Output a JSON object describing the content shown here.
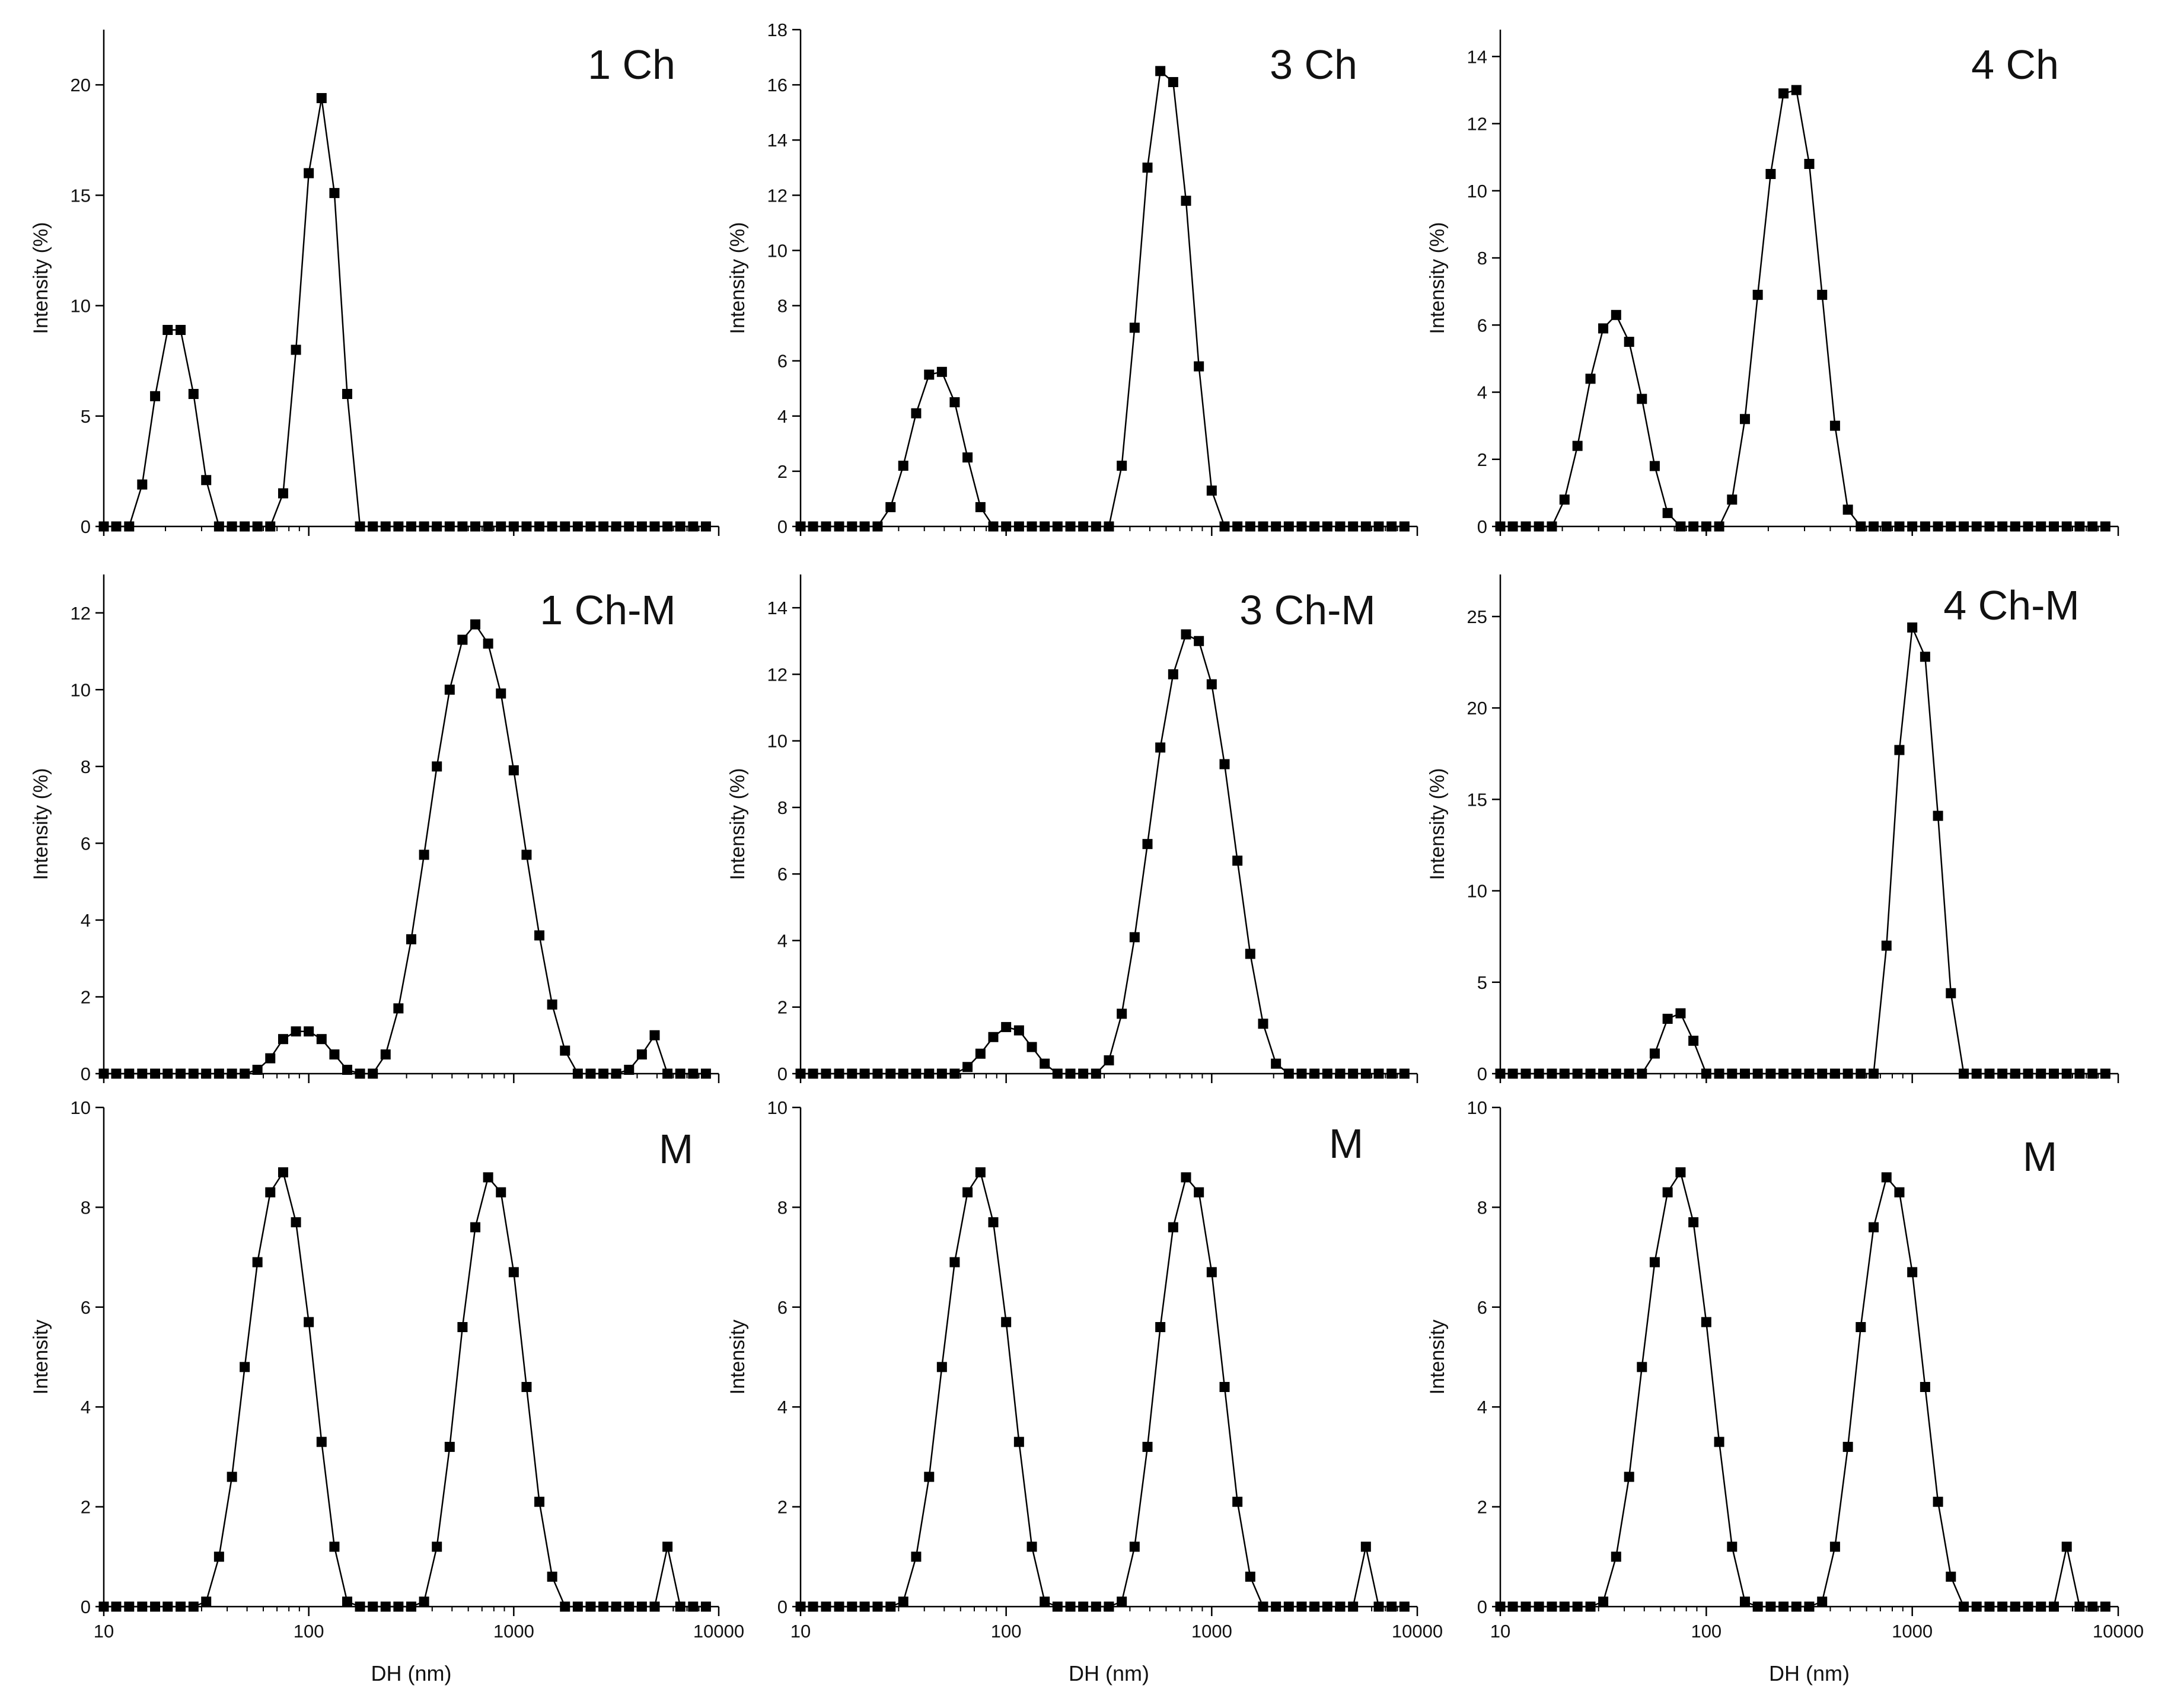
{
  "colors": {
    "line": "#000000",
    "marker": "#000000",
    "axis": "#000000",
    "background": "#ffffff"
  },
  "chart_data": [
    {
      "type": "line",
      "panel": "1 Ch",
      "label": "1 Ch",
      "xscale": "log",
      "xlim": [
        10,
        10000
      ],
      "ylim": [
        0,
        22.5
      ],
      "xlabel": "",
      "ylabel": "Intensity (%)",
      "yticks": [
        0,
        5,
        10,
        15,
        20
      ],
      "xtick_labels": [],
      "grid": false,
      "legend": "none",
      "x": [
        10,
        11.5,
        13.3,
        15.4,
        17.8,
        20.5,
        23.7,
        27.4,
        31.6,
        36.5,
        42.2,
        48.7,
        56.2,
        64.9,
        75,
        86.6,
        100,
        115.5,
        133.4,
        154,
        177.8,
        205.4,
        237.1,
        273.8,
        316.2,
        365.2,
        421.7,
        487,
        562.3,
        649.4,
        749.9,
        866,
        1000,
        1154.8,
        1333.5,
        1539.9,
        1778.3,
        2053.5,
        2371.4,
        2738.4,
        3162.3,
        3651.7,
        4217,
        4869.7,
        5623.4,
        6493.8,
        7498.9,
        8659.6
      ],
      "y": [
        0,
        0,
        0,
        1.9,
        5.9,
        8.9,
        8.9,
        6,
        2.1,
        0,
        0,
        0,
        0,
        0,
        1.5,
        8,
        16,
        19.4,
        15.1,
        6,
        0,
        0,
        0,
        0,
        0,
        0,
        0,
        0,
        0,
        0,
        0,
        0,
        0,
        0,
        0,
        0,
        0,
        0,
        0,
        0,
        0,
        0,
        0,
        0,
        0,
        0,
        0,
        0
      ]
    },
    {
      "type": "line",
      "panel": "3 Ch",
      "label": "3 Ch",
      "xscale": "log",
      "xlim": [
        10,
        10000
      ],
      "ylim": [
        0,
        18
      ],
      "xlabel": "",
      "ylabel": "Intensity (%)",
      "yticks": [
        0,
        2,
        4,
        6,
        8,
        10,
        12,
        14,
        16,
        18
      ],
      "xtick_labels": [],
      "grid": false,
      "legend": "none",
      "x": [
        10,
        11.5,
        13.3,
        15.4,
        17.8,
        20.5,
        23.7,
        27.4,
        31.6,
        36.5,
        42.2,
        48.7,
        56.2,
        64.9,
        75,
        86.6,
        100,
        115.5,
        133.4,
        154,
        177.8,
        205.4,
        237.1,
        273.8,
        316.2,
        365.2,
        421.7,
        487,
        562.3,
        649.4,
        749.9,
        866,
        1000,
        1154.8,
        1333.5,
        1539.9,
        1778.3,
        2053.5,
        2371.4,
        2738.4,
        3162.3,
        3651.7,
        4217,
        4869.7,
        5623.4,
        6493.8,
        7498.9,
        8659.6
      ],
      "y": [
        0,
        0,
        0,
        0,
        0,
        0,
        0,
        0.7,
        2.2,
        4.1,
        5.5,
        5.6,
        4.5,
        2.5,
        0.7,
        0,
        0,
        0,
        0,
        0,
        0,
        0,
        0,
        0,
        0,
        2.2,
        7.2,
        13,
        16.5,
        16.1,
        11.8,
        5.8,
        1.3,
        0,
        0,
        0,
        0,
        0,
        0,
        0,
        0,
        0,
        0,
        0,
        0,
        0,
        0,
        0
      ]
    },
    {
      "type": "line",
      "panel": "4 Ch",
      "label": "4 Ch",
      "xscale": "log",
      "xlim": [
        10,
        10000
      ],
      "ylim": [
        0,
        14.8
      ],
      "xlabel": "",
      "ylabel": "Intensity (%)",
      "yticks": [
        0,
        2,
        4,
        6,
        8,
        10,
        12,
        14
      ],
      "xtick_labels": [],
      "grid": false,
      "legend": "none",
      "x": [
        10,
        11.5,
        13.3,
        15.4,
        17.8,
        20.5,
        23.7,
        27.4,
        31.6,
        36.5,
        42.2,
        48.7,
        56.2,
        64.9,
        75,
        86.6,
        100,
        115.5,
        133.4,
        154,
        177.8,
        205.4,
        237.1,
        273.8,
        316.2,
        365.2,
        421.7,
        487,
        562.3,
        649.4,
        749.9,
        866,
        1000,
        1154.8,
        1333.5,
        1539.9,
        1778.3,
        2053.5,
        2371.4,
        2738.4,
        3162.3,
        3651.7,
        4217,
        4869.7,
        5623.4,
        6493.8,
        7498.9,
        8659.6
      ],
      "y": [
        0,
        0,
        0,
        0,
        0,
        0.8,
        2.4,
        4.4,
        5.9,
        6.3,
        5.5,
        3.8,
        1.8,
        0.4,
        0,
        0,
        0,
        0,
        0.8,
        3.2,
        6.9,
        10.5,
        12.9,
        13,
        10.8,
        6.9,
        3,
        0.5,
        0,
        0,
        0,
        0,
        0,
        0,
        0,
        0,
        0,
        0,
        0,
        0,
        0,
        0,
        0,
        0,
        0,
        0,
        0,
        0
      ]
    },
    {
      "type": "line",
      "panel": "1 Ch-M",
      "label": "1 Ch-M",
      "xscale": "log",
      "xlim": [
        10,
        10000
      ],
      "ylim": [
        0,
        13
      ],
      "xlabel": "",
      "ylabel": "Intensity (%)",
      "yticks": [
        0,
        2,
        4,
        6,
        8,
        10,
        12
      ],
      "xtick_labels": [],
      "grid": false,
      "legend": "none",
      "x": [
        10,
        11.5,
        13.3,
        15.4,
        17.8,
        20.5,
        23.7,
        27.4,
        31.6,
        36.5,
        42.2,
        48.7,
        56.2,
        64.9,
        75,
        86.6,
        100,
        115.5,
        133.4,
        154,
        177.8,
        205.4,
        237.1,
        273.8,
        316.2,
        365.2,
        421.7,
        487,
        562.3,
        649.4,
        749.9,
        866,
        1000,
        1154.8,
        1333.5,
        1539.9,
        1778.3,
        2053.5,
        2371.4,
        2738.4,
        3162.3,
        3651.7,
        4217,
        4869.7,
        5623.4,
        6493.8,
        7498.9,
        8659.6
      ],
      "y": [
        0,
        0,
        0,
        0,
        0,
        0,
        0,
        0,
        0,
        0,
        0,
        0,
        0.1,
        0.4,
        0.9,
        1.1,
        1.1,
        0.9,
        0.5,
        0.1,
        0,
        0,
        0.5,
        1.7,
        3.5,
        5.7,
        8,
        10,
        11.3,
        11.7,
        11.2,
        9.9,
        7.9,
        5.7,
        3.6,
        1.8,
        0.6,
        0,
        0,
        0,
        0,
        0.1,
        0.5,
        1,
        0,
        0,
        0,
        0
      ]
    },
    {
      "type": "line",
      "panel": "3 Ch-M",
      "label": "3 Ch-M",
      "xscale": "log",
      "xlim": [
        10,
        10000
      ],
      "ylim": [
        0,
        15
      ],
      "xlabel": "",
      "ylabel": "Intensity (%)",
      "yticks": [
        0,
        2,
        4,
        6,
        8,
        10,
        12,
        14
      ],
      "xtick_labels": [],
      "grid": false,
      "legend": "none",
      "x": [
        10,
        11.5,
        13.3,
        15.4,
        17.8,
        20.5,
        23.7,
        27.4,
        31.6,
        36.5,
        42.2,
        48.7,
        56.2,
        64.9,
        75,
        86.6,
        100,
        115.5,
        133.4,
        154,
        177.8,
        205.4,
        237.1,
        273.8,
        316.2,
        365.2,
        421.7,
        487,
        562.3,
        649.4,
        749.9,
        866,
        1000,
        1154.8,
        1333.5,
        1539.9,
        1778.3,
        2053.5,
        2371.4,
        2738.4,
        3162.3,
        3651.7,
        4217,
        4869.7,
        5623.4,
        6493.8,
        7498.9,
        8659.6
      ],
      "y": [
        0,
        0,
        0,
        0,
        0,
        0,
        0,
        0,
        0,
        0,
        0,
        0,
        0,
        0.2,
        0.6,
        1.1,
        1.4,
        1.3,
        0.8,
        0.3,
        0,
        0,
        0,
        0,
        0.4,
        1.8,
        4.1,
        6.9,
        9.8,
        12,
        13.2,
        13,
        11.7,
        9.3,
        6.4,
        3.6,
        1.5,
        0.3,
        0,
        0,
        0,
        0,
        0,
        0,
        0,
        0,
        0,
        0
      ]
    },
    {
      "type": "line",
      "panel": "4 Ch-M",
      "label": "4 Ch-M",
      "xscale": "log",
      "xlim": [
        10,
        10000
      ],
      "ylim": [
        0,
        27.3
      ],
      "xlabel": "",
      "ylabel": "Intensity (%)",
      "yticks": [
        0,
        5,
        10,
        15,
        20,
        25
      ],
      "xtick_labels": [],
      "grid": false,
      "legend": "none",
      "x": [
        10,
        11.5,
        13.3,
        15.4,
        17.8,
        20.5,
        23.7,
        27.4,
        31.6,
        36.5,
        42.2,
        48.7,
        56.2,
        64.9,
        75,
        86.6,
        100,
        115.5,
        133.4,
        154,
        177.8,
        205.4,
        237.1,
        273.8,
        316.2,
        365.2,
        421.7,
        487,
        562.3,
        649.4,
        749.9,
        866,
        1000,
        1154.8,
        1333.5,
        1539.9,
        1778.3,
        2053.5,
        2371.4,
        2738.4,
        3162.3,
        3651.7,
        4217,
        4869.7,
        5623.4,
        6493.8,
        7498.9,
        8659.6
      ],
      "y": [
        0,
        0,
        0,
        0,
        0,
        0,
        0,
        0,
        0,
        0,
        0,
        0,
        1.1,
        3,
        3.3,
        1.8,
        0,
        0,
        0,
        0,
        0,
        0,
        0,
        0,
        0,
        0,
        0,
        0,
        0,
        0,
        7,
        17.7,
        24.4,
        22.8,
        14.1,
        4.4,
        0,
        0,
        0,
        0,
        0,
        0,
        0,
        0,
        0,
        0,
        0,
        0
      ]
    },
    {
      "type": "line",
      "panel": "M-1",
      "label": "M",
      "xscale": "log",
      "xlim": [
        10,
        10000
      ],
      "ylim": [
        0,
        10
      ],
      "xlabel": "DH (nm)",
      "ylabel": "Intensity",
      "yticks": [
        0,
        2,
        4,
        6,
        8,
        10
      ],
      "xtick_labels": [
        "10",
        "100",
        "1000",
        "10000"
      ],
      "grid": false,
      "legend": "none",
      "x": [
        10,
        11.5,
        13.3,
        15.4,
        17.8,
        20.5,
        23.7,
        27.4,
        31.6,
        36.5,
        42.2,
        48.7,
        56.2,
        64.9,
        75,
        86.6,
        100,
        115.5,
        133.4,
        154,
        177.8,
        205.4,
        237.1,
        273.8,
        316.2,
        365.2,
        421.7,
        487,
        562.3,
        649.4,
        749.9,
        866,
        1000,
        1154.8,
        1333.5,
        1539.9,
        1778.3,
        2053.5,
        2371.4,
        2738.4,
        3162.3,
        3651.7,
        4217,
        4869.7,
        5623.4,
        6493.8,
        7498.9,
        8659.6
      ],
      "y": [
        0,
        0,
        0,
        0,
        0,
        0,
        0,
        0,
        0.1,
        1,
        2.6,
        4.8,
        6.9,
        8.3,
        8.7,
        7.7,
        5.7,
        3.3,
        1.2,
        0.1,
        0,
        0,
        0,
        0,
        0,
        0.1,
        1.2,
        3.2,
        5.6,
        7.6,
        8.6,
        8.3,
        6.7,
        4.4,
        2.1,
        0.6,
        0,
        0,
        0,
        0,
        0,
        0,
        0,
        0,
        1.2,
        0,
        0,
        0
      ]
    },
    {
      "type": "line",
      "panel": "M-2",
      "label": "M",
      "xscale": "log",
      "xlim": [
        10,
        10000
      ],
      "ylim": [
        0,
        10
      ],
      "xlabel": "DH (nm)",
      "ylabel": "Intensity",
      "yticks": [
        0,
        2,
        4,
        6,
        8,
        10
      ],
      "xtick_labels": [
        "10",
        "100",
        "1000",
        "10000"
      ],
      "grid": false,
      "legend": "none",
      "x": [
        10,
        11.5,
        13.3,
        15.4,
        17.8,
        20.5,
        23.7,
        27.4,
        31.6,
        36.5,
        42.2,
        48.7,
        56.2,
        64.9,
        75,
        86.6,
        100,
        115.5,
        133.4,
        154,
        177.8,
        205.4,
        237.1,
        273.8,
        316.2,
        365.2,
        421.7,
        487,
        562.3,
        649.4,
        749.9,
        866,
        1000,
        1154.8,
        1333.5,
        1539.9,
        1778.3,
        2053.5,
        2371.4,
        2738.4,
        3162.3,
        3651.7,
        4217,
        4869.7,
        5623.4,
        6493.8,
        7498.9,
        8659.6
      ],
      "y": [
        0,
        0,
        0,
        0,
        0,
        0,
        0,
        0,
        0.1,
        1,
        2.6,
        4.8,
        6.9,
        8.3,
        8.7,
        7.7,
        5.7,
        3.3,
        1.2,
        0.1,
        0,
        0,
        0,
        0,
        0,
        0.1,
        1.2,
        3.2,
        5.6,
        7.6,
        8.6,
        8.3,
        6.7,
        4.4,
        2.1,
        0.6,
        0,
        0,
        0,
        0,
        0,
        0,
        0,
        0,
        1.2,
        0,
        0,
        0
      ]
    },
    {
      "type": "line",
      "panel": "M-3",
      "label": "M",
      "xscale": "log",
      "xlim": [
        10,
        10000
      ],
      "ylim": [
        0,
        10
      ],
      "xlabel": "DH (nm)",
      "ylabel": "Intensity",
      "yticks": [
        0,
        2,
        4,
        6,
        8,
        10
      ],
      "xtick_labels": [
        "10",
        "100",
        "1000",
        "10000"
      ],
      "grid": false,
      "legend": "none",
      "x": [
        10,
        11.5,
        13.3,
        15.4,
        17.8,
        20.5,
        23.7,
        27.4,
        31.6,
        36.5,
        42.2,
        48.7,
        56.2,
        64.9,
        75,
        86.6,
        100,
        115.5,
        133.4,
        154,
        177.8,
        205.4,
        237.1,
        273.8,
        316.2,
        365.2,
        421.7,
        487,
        562.3,
        649.4,
        749.9,
        866,
        1000,
        1154.8,
        1333.5,
        1539.9,
        1778.3,
        2053.5,
        2371.4,
        2738.4,
        3162.3,
        3651.7,
        4217,
        4869.7,
        5623.4,
        6493.8,
        7498.9,
        8659.6
      ],
      "y": [
        0,
        0,
        0,
        0,
        0,
        0,
        0,
        0,
        0.1,
        1,
        2.6,
        4.8,
        6.9,
        8.3,
        8.7,
        7.7,
        5.7,
        3.3,
        1.2,
        0.1,
        0,
        0,
        0,
        0,
        0,
        0.1,
        1.2,
        3.2,
        5.6,
        7.6,
        8.6,
        8.3,
        6.7,
        4.4,
        2.1,
        0.6,
        0,
        0,
        0,
        0,
        0,
        0,
        0,
        0,
        1.2,
        0,
        0,
        0
      ]
    }
  ]
}
